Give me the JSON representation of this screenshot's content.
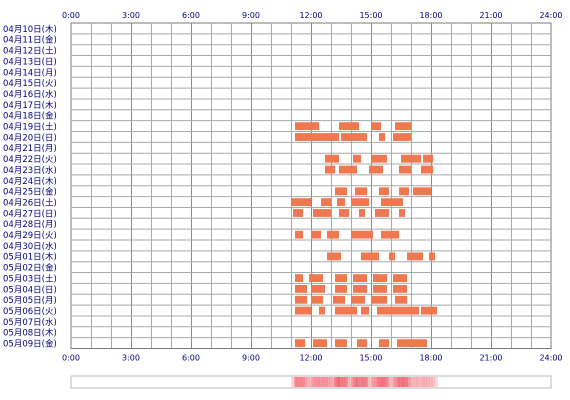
{
  "chart_data": {
    "type": "heatmap",
    "title": "",
    "x_axis": {
      "range": [
        0,
        24
      ],
      "tick_hours": [
        0,
        3,
        6,
        9,
        12,
        15,
        18,
        21,
        24
      ],
      "tick_labels": [
        "0:00",
        "3:00",
        "6:00",
        "9:00",
        "12:00",
        "15:00",
        "18:00",
        "21:00",
        "24:00"
      ]
    },
    "grid": true,
    "bar_color": "#f07850",
    "summary_color": "#f46070",
    "days": [
      {
        "label": "04月10日(木)",
        "intervals": []
      },
      {
        "label": "04月11日(金)",
        "intervals": []
      },
      {
        "label": "04月12日(土)",
        "intervals": []
      },
      {
        "label": "04月13日(日)",
        "intervals": []
      },
      {
        "label": "04月14日(月)",
        "intervals": []
      },
      {
        "label": "04月15日(火)",
        "intervals": []
      },
      {
        "label": "04月16日(水)",
        "intervals": []
      },
      {
        "label": "04月17日(木)",
        "intervals": []
      },
      {
        "label": "04月18日(金)",
        "intervals": []
      },
      {
        "label": "04月19日(土)",
        "intervals": [
          [
            11.2,
            12.4
          ],
          [
            13.4,
            14.4
          ],
          [
            15.0,
            15.5
          ],
          [
            16.2,
            17.0
          ]
        ]
      },
      {
        "label": "04月20日(日)",
        "intervals": [
          [
            11.2,
            13.4
          ],
          [
            13.5,
            14.8
          ],
          [
            15.4,
            15.7
          ],
          [
            16.1,
            17.0
          ]
        ]
      },
      {
        "label": "04月21日(月)",
        "intervals": []
      },
      {
        "label": "04月22日(火)",
        "intervals": [
          [
            12.7,
            13.4
          ],
          [
            14.1,
            14.5
          ],
          [
            15.0,
            15.8
          ],
          [
            16.5,
            17.5
          ],
          [
            17.6,
            18.1
          ]
        ]
      },
      {
        "label": "04月23日(水)",
        "intervals": [
          [
            12.7,
            13.2
          ],
          [
            13.4,
            14.3
          ],
          [
            14.9,
            15.6
          ],
          [
            16.4,
            17.0
          ],
          [
            17.5,
            18.1
          ]
        ]
      },
      {
        "label": "04月24日(木)",
        "intervals": []
      },
      {
        "label": "04月25日(金)",
        "intervals": [
          [
            13.2,
            13.8
          ],
          [
            14.2,
            14.8
          ],
          [
            15.4,
            15.9
          ],
          [
            16.4,
            16.9
          ],
          [
            17.1,
            18.0
          ]
        ]
      },
      {
        "label": "04月26日(土)",
        "intervals": [
          [
            11.0,
            12.0
          ],
          [
            12.5,
            13.0
          ],
          [
            13.3,
            13.7
          ],
          [
            14.0,
            14.9
          ],
          [
            15.5,
            16.6
          ]
        ]
      },
      {
        "label": "04月27日(日)",
        "intervals": [
          [
            11.1,
            11.6
          ],
          [
            12.1,
            13.0
          ],
          [
            13.4,
            13.9
          ],
          [
            14.4,
            14.7
          ],
          [
            15.2,
            15.9
          ],
          [
            16.4,
            16.7
          ]
        ]
      },
      {
        "label": "04月28日(月)",
        "intervals": []
      },
      {
        "label": "04月29日(火)",
        "intervals": [
          [
            11.2,
            11.6
          ],
          [
            12.0,
            12.5
          ],
          [
            12.8,
            13.4
          ],
          [
            14.0,
            15.1
          ],
          [
            15.5,
            16.4
          ]
        ]
      },
      {
        "label": "04月30日(水)",
        "intervals": []
      },
      {
        "label": "05月01日(木)",
        "intervals": [
          [
            12.8,
            13.5
          ],
          [
            14.5,
            15.4
          ],
          [
            15.9,
            16.2
          ],
          [
            16.8,
            17.6
          ],
          [
            17.9,
            18.2
          ]
        ]
      },
      {
        "label": "05月02日(金)",
        "intervals": []
      },
      {
        "label": "05月03日(土)",
        "intervals": [
          [
            11.2,
            11.6
          ],
          [
            11.9,
            12.6
          ],
          [
            13.2,
            13.8
          ],
          [
            14.1,
            14.8
          ],
          [
            15.1,
            15.8
          ],
          [
            16.1,
            16.8
          ]
        ]
      },
      {
        "label": "05月04日(日)",
        "intervals": [
          [
            11.2,
            11.8
          ],
          [
            12.0,
            12.7
          ],
          [
            13.2,
            13.8
          ],
          [
            14.1,
            14.8
          ],
          [
            15.1,
            15.8
          ],
          [
            16.1,
            16.8
          ]
        ]
      },
      {
        "label": "05月05日(月)",
        "intervals": [
          [
            11.2,
            11.8
          ],
          [
            12.0,
            12.6
          ],
          [
            13.1,
            13.7
          ],
          [
            14.0,
            14.7
          ],
          [
            15.0,
            15.8
          ],
          [
            16.2,
            16.8
          ]
        ]
      },
      {
        "label": "05月06日(火)",
        "intervals": [
          [
            11.2,
            12.0
          ],
          [
            12.4,
            12.7
          ],
          [
            13.2,
            14.3
          ],
          [
            14.5,
            14.9
          ],
          [
            15.3,
            17.4
          ],
          [
            17.5,
            18.3
          ]
        ]
      },
      {
        "label": "05月07日(水)",
        "intervals": []
      },
      {
        "label": "05月08日(木)",
        "intervals": []
      },
      {
        "label": "05月09日(金)",
        "intervals": [
          [
            11.2,
            11.7
          ],
          [
            12.1,
            12.8
          ],
          [
            13.2,
            13.8
          ],
          [
            14.3,
            14.8
          ],
          [
            15.4,
            15.9
          ],
          [
            16.3,
            17.8
          ]
        ]
      }
    ]
  }
}
